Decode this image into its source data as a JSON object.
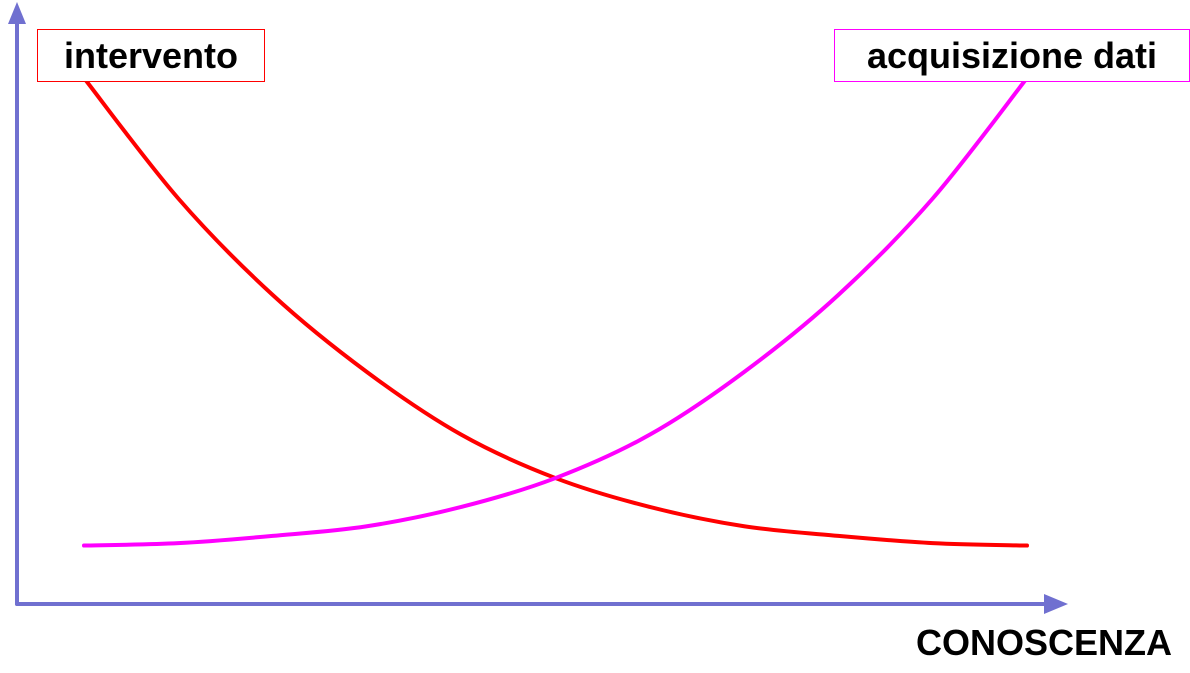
{
  "chart_data": {
    "type": "line",
    "title": "",
    "xlabel": "CONOSCENZA",
    "ylabel": "",
    "grid": false,
    "legend_placement": "top-left and top-right, boxed labels at the curve ends",
    "axis_color": "#7070D0",
    "x": [
      0,
      0.1,
      0.2,
      0.3,
      0.4,
      0.5,
      0.6,
      0.7,
      0.8,
      0.9,
      1.0
    ],
    "xlim": [
      0,
      1
    ],
    "ylim": [
      0,
      1
    ],
    "series": [
      {
        "name": "intervento",
        "color": "#FF0000",
        "values": [
          1.0,
          0.75,
          0.55,
          0.39,
          0.26,
          0.17,
          0.11,
          0.07,
          0.05,
          0.035,
          0.03
        ]
      },
      {
        "name": "acquisizione dati",
        "color": "#FF00FF",
        "values": [
          0.03,
          0.035,
          0.05,
          0.07,
          0.11,
          0.17,
          0.26,
          0.39,
          0.55,
          0.75,
          1.0
        ]
      }
    ]
  }
}
